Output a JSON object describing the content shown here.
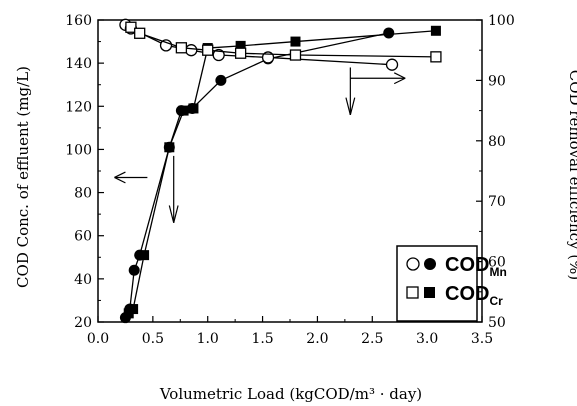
{
  "chart_data": {
    "type": "line",
    "title": "",
    "xlabel": "Volumetric Load (kgCOD/m³ · day)",
    "ylabel_left": "COD Conc. of effluent (mg/L)",
    "ylabel_right": "COD removal efficiency (%)",
    "xlim": [
      0,
      3.5
    ],
    "ylim_left": [
      20,
      160
    ],
    "ylim_right": [
      50,
      100
    ],
    "x_ticks": [
      "0.0",
      "0.5",
      "1.0",
      "1.5",
      "2.0",
      "2.5",
      "3.0",
      "3.5"
    ],
    "y_left_ticks": [
      "20",
      "40",
      "60",
      "80",
      "100",
      "120",
      "140",
      "160"
    ],
    "y_right_ticks": [
      "50",
      "60",
      "70",
      "80",
      "90",
      "100"
    ],
    "grid": false,
    "legend_position": "bottom-right",
    "series": [
      {
        "name": "COD_Mn",
        "legend_main": "COD",
        "legend_sub": "Mn",
        "axis": "left",
        "marker": "filled-circle",
        "x": [
          0.25,
          0.29,
          0.33,
          0.38,
          0.65,
          0.76,
          0.86,
          1.12,
          1.55,
          2.65
        ],
        "y": [
          22,
          26,
          44,
          51,
          101,
          118,
          119,
          132,
          142,
          154
        ]
      },
      {
        "name": "COD_Cr",
        "legend_main": "COD",
        "legend_sub": "Cr",
        "axis": "left",
        "marker": "filled-square",
        "x": [
          0.28,
          0.32,
          0.42,
          0.65,
          0.78,
          0.87,
          1.0,
          1.3,
          1.8,
          3.08
        ],
        "y": [
          24,
          26,
          51,
          101,
          118,
          119,
          147,
          148,
          150,
          155
        ]
      },
      {
        "name": "COD_Mn removal",
        "axis": "right",
        "marker": "open-circle",
        "x": [
          0.25,
          0.3,
          0.62,
          0.85,
          1.1,
          1.55,
          2.68
        ],
        "y": [
          99.2,
          98.6,
          95.8,
          95.0,
          94.2,
          93.8,
          92.6
        ]
      },
      {
        "name": "COD_Cr removal",
        "axis": "right",
        "marker": "open-square",
        "x": [
          0.3,
          0.38,
          0.76,
          1.0,
          1.3,
          1.8,
          3.08
        ],
        "y": [
          98.8,
          97.8,
          95.4,
          95.0,
          94.5,
          94.2,
          93.9
        ]
      }
    ]
  }
}
